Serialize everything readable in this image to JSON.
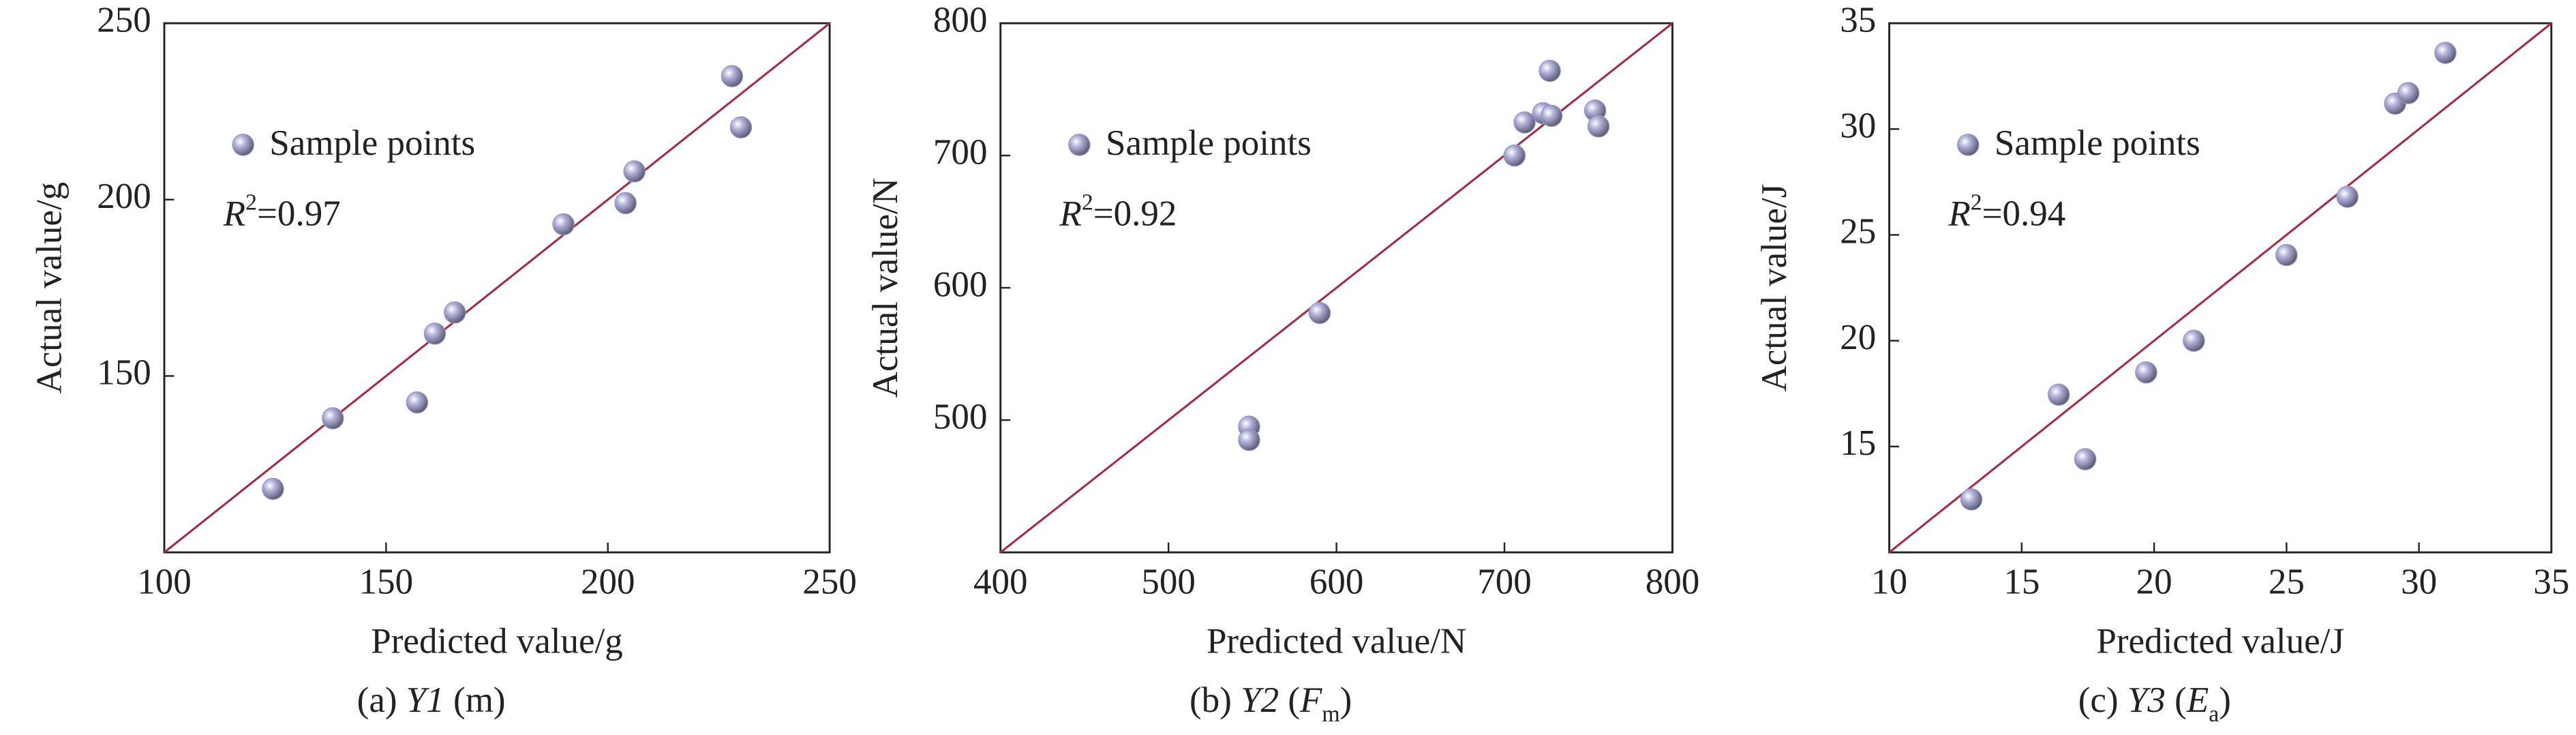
{
  "chart_data": [
    {
      "type": "scatter",
      "x_label": "Predicted value/g",
      "y_label": "Actual value/g",
      "caption": [
        {
          "text": "(a) "
        },
        {
          "text": "Y1",
          "style": "italic"
        },
        {
          "text": " (m)"
        }
      ],
      "annotation": [
        {
          "text": "R",
          "style": "italic"
        },
        {
          "text": "2",
          "style": "sup"
        },
        {
          "text": "=0.97"
        }
      ],
      "x": [
        124.5,
        138,
        157,
        161,
        165.5,
        190,
        204,
        206,
        228,
        230
      ],
      "series": [
        {
          "name": "Sample points",
          "color": "#9a9ac8",
          "values": [
            118,
            138,
            142.5,
            162,
            168,
            193,
            199,
            208,
            235,
            220.5
          ]
        }
      ],
      "xlim": [
        100,
        250
      ],
      "ylim": [
        100,
        250
      ],
      "xticks": [
        100,
        150,
        200,
        250
      ],
      "yticks": [
        150,
        200,
        250
      ],
      "line_color": "#a0304a",
      "legend": "upper left"
    },
    {
      "type": "scatter",
      "x_label": "Predicted value/N",
      "y_label": "Actual value/N",
      "caption": [
        {
          "text": "(b) "
        },
        {
          "text": "Y2",
          "style": "italic"
        },
        {
          "text": " ("
        },
        {
          "text": "F",
          "style": "italic"
        },
        {
          "text": "m",
          "style": "sub"
        },
        {
          "text": ")"
        }
      ],
      "annotation": [
        {
          "text": "R",
          "style": "italic"
        },
        {
          "text": "2",
          "style": "sup"
        },
        {
          "text": "=0.92"
        }
      ],
      "x": [
        548,
        548,
        590,
        706,
        712,
        723,
        728,
        727,
        754,
        756
      ],
      "series": [
        {
          "name": "Sample points",
          "color": "#9a9ac8",
          "values": [
            495,
            485,
            581,
            700,
            725,
            732,
            730,
            764,
            734,
            722
          ]
        }
      ],
      "xlim": [
        400,
        800
      ],
      "ylim": [
        400,
        800
      ],
      "xticks": [
        400,
        500,
        600,
        700,
        800
      ],
      "yticks": [
        500,
        600,
        700,
        800
      ],
      "line_color": "#a0304a",
      "legend": "upper left"
    },
    {
      "type": "scatter",
      "x_label": "Predicted value/J",
      "y_label": "Actual value/J",
      "caption": [
        {
          "text": "(c) "
        },
        {
          "text": "Y3",
          "style": "italic"
        },
        {
          "text": " ("
        },
        {
          "text": "E",
          "style": "italic"
        },
        {
          "text": "a",
          "style": "sub"
        },
        {
          "text": ")"
        }
      ],
      "annotation": [
        {
          "text": "R",
          "style": "italic"
        },
        {
          "text": "2",
          "style": "sup"
        },
        {
          "text": "=0.94"
        }
      ],
      "x": [
        13.1,
        16.4,
        17.4,
        19.7,
        21.5,
        25,
        27.3,
        29.1,
        29.6,
        31
      ],
      "series": [
        {
          "name": "Sample points",
          "color": "#9a9ac8",
          "values": [
            12.5,
            17.45,
            14.4,
            18.5,
            20,
            24.05,
            26.8,
            31.2,
            31.7,
            33.6
          ]
        }
      ],
      "xlim": [
        10,
        35
      ],
      "ylim": [
        10,
        35
      ],
      "xticks": [
        10,
        15,
        20,
        25,
        30,
        35
      ],
      "yticks": [
        15,
        20,
        25,
        30,
        35
      ],
      "line_color": "#a0304a",
      "legend": "upper left"
    }
  ]
}
